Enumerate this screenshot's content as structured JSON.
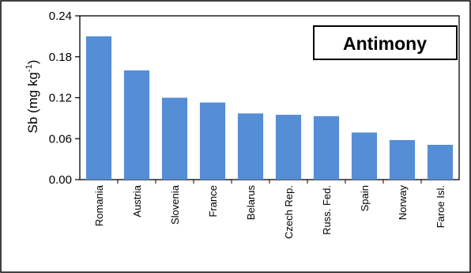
{
  "chart_data": {
    "type": "bar",
    "title": "Antimony",
    "ylabel_main": "Sb (mg kg",
    "ylabel_sup": "-1",
    "ylabel_end": ")",
    "categories": [
      "Romania",
      "Austria",
      "Slovenia",
      "France",
      "Belarus",
      "Czech Rep.",
      "Russ. Fed.",
      "Spain",
      "Norway",
      "Faroe Isl."
    ],
    "values": [
      0.21,
      0.16,
      0.12,
      0.113,
      0.097,
      0.095,
      0.093,
      0.069,
      0.058,
      0.051
    ],
    "ylim": [
      0,
      0.24
    ],
    "yticks": [
      0.0,
      0.06,
      0.12,
      0.18,
      0.24
    ],
    "ytick_labels": [
      "0.00",
      "0.06",
      "0.12",
      "0.18",
      "0.24"
    ],
    "bar_color": "#558ed5",
    "grid": false,
    "legend": "none"
  }
}
